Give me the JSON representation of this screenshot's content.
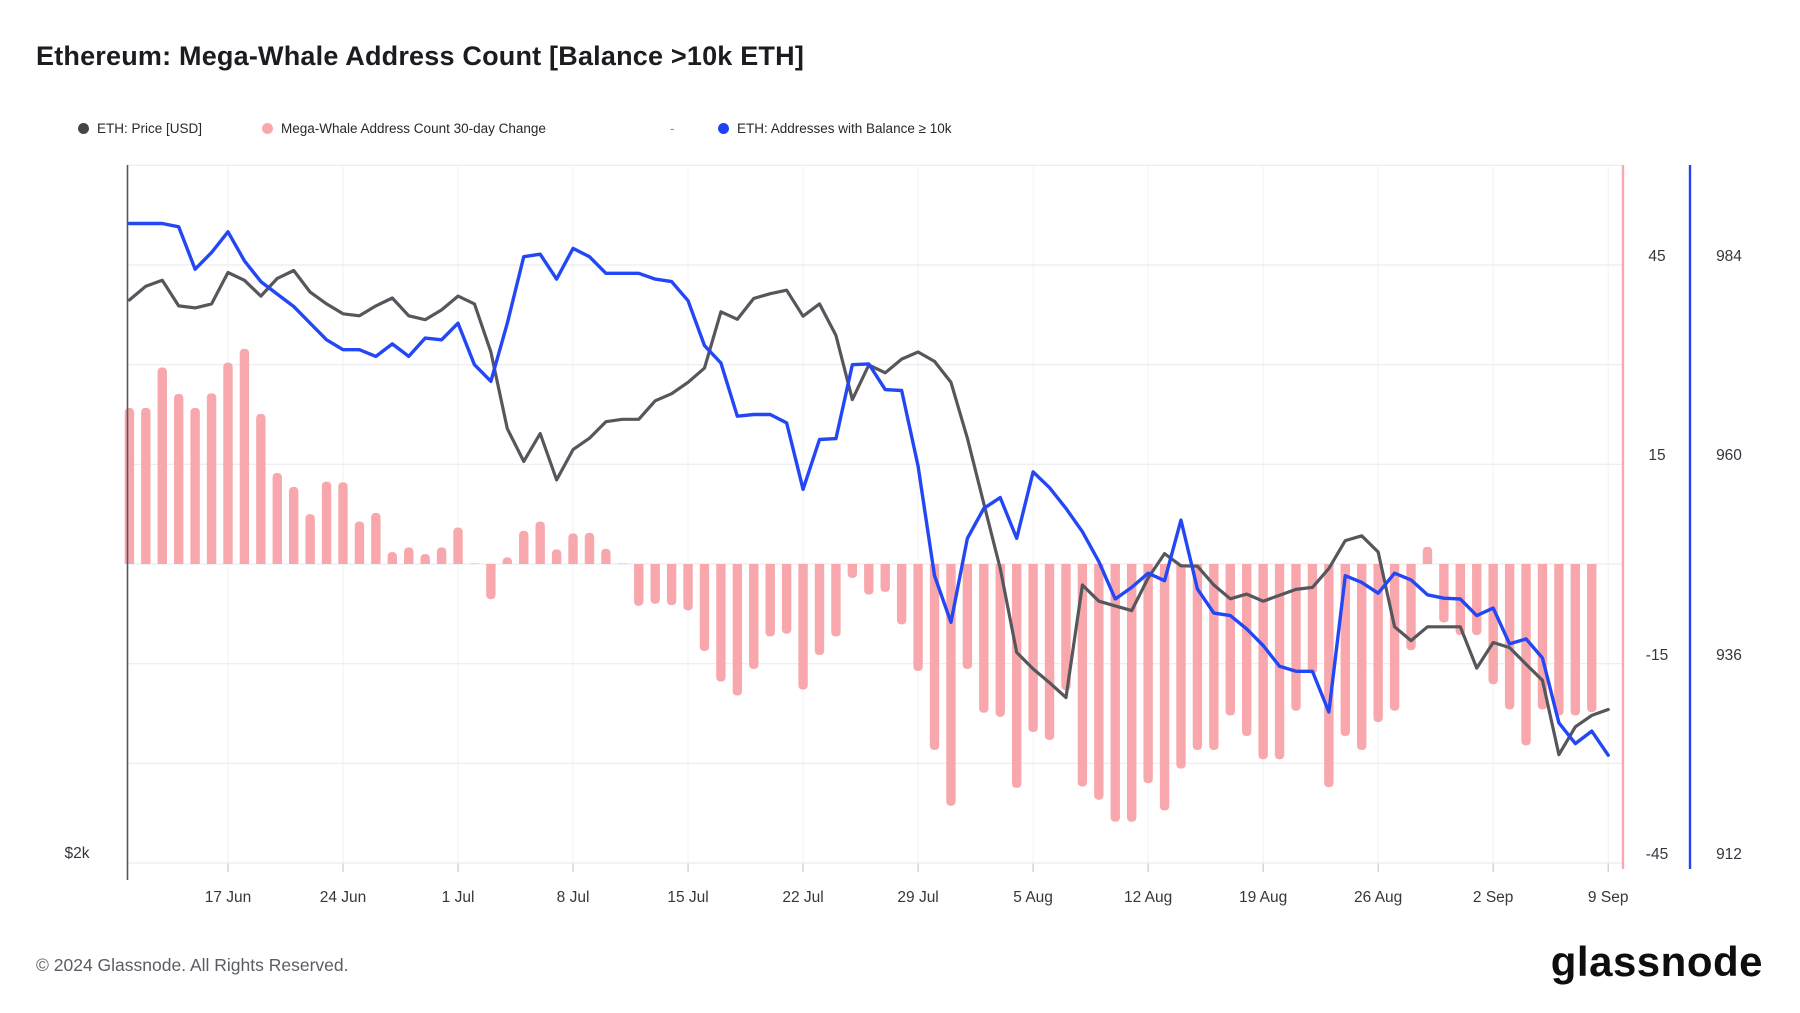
{
  "title": "Ethereum: Mega-Whale Address Count [Balance >10k ETH]",
  "legend": {
    "items": [
      {
        "label": "ETH: Price [USD]",
        "color": "#43454a"
      },
      {
        "label": "Mega-Whale Address Count 30-day Change",
        "color": "#f8a8ac"
      },
      {
        "label": "ETH: Addresses with Balance ≥ 10k",
        "color": "#2042f0"
      }
    ],
    "separator": "-"
  },
  "footer": {
    "copyright": "© 2024 Glassnode. All Rights Reserved.",
    "brand": "glassnode"
  },
  "chart_data": {
    "type": "mixed-bar-line",
    "title": "Ethereum: Mega-Whale Address Count [Balance >10k ETH]",
    "x_dates": [
      "2024-06-11",
      "2024-06-12",
      "2024-06-13",
      "2024-06-14",
      "2024-06-15",
      "2024-06-16",
      "2024-06-17",
      "2024-06-18",
      "2024-06-19",
      "2024-06-20",
      "2024-06-21",
      "2024-06-22",
      "2024-06-23",
      "2024-06-24",
      "2024-06-25",
      "2024-06-26",
      "2024-06-27",
      "2024-06-28",
      "2024-06-29",
      "2024-06-30",
      "2024-07-01",
      "2024-07-02",
      "2024-07-03",
      "2024-07-04",
      "2024-07-05",
      "2024-07-06",
      "2024-07-07",
      "2024-07-08",
      "2024-07-09",
      "2024-07-10",
      "2024-07-11",
      "2024-07-12",
      "2024-07-13",
      "2024-07-14",
      "2024-07-15",
      "2024-07-16",
      "2024-07-17",
      "2024-07-18",
      "2024-07-19",
      "2024-07-20",
      "2024-07-21",
      "2024-07-22",
      "2024-07-23",
      "2024-07-24",
      "2024-07-25",
      "2024-07-26",
      "2024-07-27",
      "2024-07-28",
      "2024-07-29",
      "2024-07-30",
      "2024-07-31",
      "2024-08-01",
      "2024-08-02",
      "2024-08-03",
      "2024-08-04",
      "2024-08-05",
      "2024-08-06",
      "2024-08-07",
      "2024-08-08",
      "2024-08-09",
      "2024-08-10",
      "2024-08-11",
      "2024-08-12",
      "2024-08-13",
      "2024-08-14",
      "2024-08-15",
      "2024-08-16",
      "2024-08-17",
      "2024-08-18",
      "2024-08-19",
      "2024-08-20",
      "2024-08-21",
      "2024-08-22",
      "2024-08-23",
      "2024-08-24",
      "2024-08-25",
      "2024-08-26",
      "2024-08-27",
      "2024-08-28",
      "2024-08-29",
      "2024-08-30",
      "2024-08-31",
      "2024-09-01",
      "2024-09-02",
      "2024-09-03",
      "2024-09-04",
      "2024-09-05",
      "2024-09-06",
      "2024-09-07",
      "2024-09-08",
      "2024-09-09"
    ],
    "xticks": [
      "17 Jun",
      "24 Jun",
      "1 Jul",
      "8 Jul",
      "15 Jul",
      "22 Jul",
      "29 Jul",
      "5 Aug",
      "12 Aug",
      "19 Aug",
      "26 Aug",
      "2 Sep",
      "9 Sep"
    ],
    "series": [
      {
        "name": "ETH: Price [USD]",
        "type": "line",
        "axis": "price",
        "color": "#55575c",
        "values": [
          3430,
          3465,
          3480,
          3415,
          3410,
          3420,
          3500,
          3480,
          3440,
          3485,
          3505,
          3450,
          3420,
          3395,
          3390,
          3415,
          3435,
          3390,
          3380,
          3405,
          3440,
          3420,
          3298,
          3103,
          3020,
          3091,
          2973,
          3050,
          3079,
          3121,
          3127,
          3127,
          3174,
          3192,
          3221,
          3257,
          3400,
          3381,
          3434,
          3446,
          3455,
          3389,
          3420,
          3340,
          3177,
          3265,
          3245,
          3280,
          3298,
          3274,
          3221,
          3079,
          2913,
          2748,
          2535,
          2493,
          2458,
          2420,
          2706,
          2665,
          2653,
          2641,
          2724,
          2786,
          2755,
          2754,
          2706,
          2671,
          2683,
          2665,
          2680,
          2695,
          2700,
          2748,
          2819,
          2831,
          2790,
          2600,
          2565,
          2600,
          2600,
          2600,
          2495,
          2560,
          2547,
          2505,
          2464,
          2275,
          2346,
          2375,
          2390
        ]
      },
      {
        "name": "Mega-Whale Address Count 30-day Change",
        "type": "bar",
        "axis": "change",
        "color": "#f8a8ac",
        "values": [
          23.5,
          23.5,
          29.6,
          25.6,
          23.5,
          25.7,
          30.3,
          32.4,
          22.6,
          13.7,
          11.6,
          7.5,
          12.4,
          12.3,
          6.4,
          7.7,
          1.8,
          2.5,
          1.5,
          2.5,
          5.5,
          0,
          -5.3,
          1,
          5,
          6.4,
          2.2,
          4.6,
          4.7,
          2.3,
          0,
          -6.3,
          -6,
          -6.2,
          -7,
          -13.1,
          -17.7,
          -19.8,
          -15.8,
          -10.9,
          -10.5,
          -18.9,
          -13.7,
          -10.9,
          -2.1,
          -4.6,
          -4.2,
          -9.1,
          -16.1,
          -28,
          -36.4,
          -15.8,
          -22.4,
          -23,
          -33.7,
          -25.3,
          -26.5,
          -19,
          -33.5,
          -35.5,
          -38.8,
          -38.8,
          -33,
          -37.1,
          -30.8,
          -28,
          -28,
          -22.8,
          -25.9,
          -29.4,
          -29.4,
          -22.1,
          -16.5,
          -33.6,
          -25.9,
          -28,
          -23.8,
          -22.1,
          -13,
          2.6,
          -8.8,
          -10.7,
          -10.7,
          -18.1,
          -21.9,
          -27.3,
          -21.9,
          -22.8,
          -22.8,
          -22.3,
          null
        ]
      },
      {
        "name": "ETH: Addresses with Balance ≥ 10k",
        "type": "line",
        "axis": "count",
        "color": "#2447f5",
        "values": [
          989,
          989,
          989,
          988.6,
          983.5,
          985.5,
          988,
          984.5,
          982,
          980.5,
          979,
          977,
          975,
          973.8,
          973.8,
          973,
          974.5,
          973,
          975.2,
          975,
          977,
          972,
          970,
          977,
          985,
          985.3,
          982.3,
          986,
          985,
          983,
          983,
          983,
          982.3,
          982,
          979.7,
          974.3,
          972.2,
          965.8,
          966,
          966,
          965,
          957,
          963,
          963.1,
          972,
          972.1,
          969,
          968.9,
          959.8,
          946.6,
          941,
          951.1,
          954.7,
          956,
          951.1,
          959.1,
          957.2,
          954.7,
          951.9,
          948.3,
          943.8,
          945.2,
          946.9,
          946,
          953.3,
          945,
          942.1,
          941.8,
          940.2,
          938.2,
          935.7,
          935.1,
          935.1,
          930.2,
          946.6,
          945.8,
          944.5,
          946.9,
          946.1,
          944.3,
          943.9,
          943.8,
          941.8,
          942.7,
          938.4,
          939,
          936.7,
          928.9,
          926.4,
          927.9,
          925
        ]
      }
    ],
    "axes": {
      "change": {
        "side": "right-inner",
        "tick_labels": [
          "45",
          "15",
          "-15",
          "-45"
        ],
        "tick_values": [
          45,
          15,
          -15,
          -45
        ],
        "grid_values": [
          60,
          45,
          30,
          15,
          0,
          -15,
          -30,
          -45
        ],
        "ylim": [
          -45,
          60.2
        ],
        "axis_line_color": "#f8a9ad"
      },
      "count": {
        "side": "right-outer",
        "tick_labels": [
          "984",
          "960",
          "936",
          "912"
        ],
        "tick_values": [
          984,
          960,
          936,
          912
        ],
        "ylim": [
          912,
          996.3
        ],
        "axis_line_color": "#2443f2"
      },
      "price": {
        "side": "left",
        "tick_labels": [
          "$2k"
        ],
        "tick_values": [
          2000
        ],
        "ylim": [
          2000,
          3773
        ],
        "axis_line_color": "#55575d"
      }
    },
    "grid": true,
    "legend_position": "top"
  }
}
